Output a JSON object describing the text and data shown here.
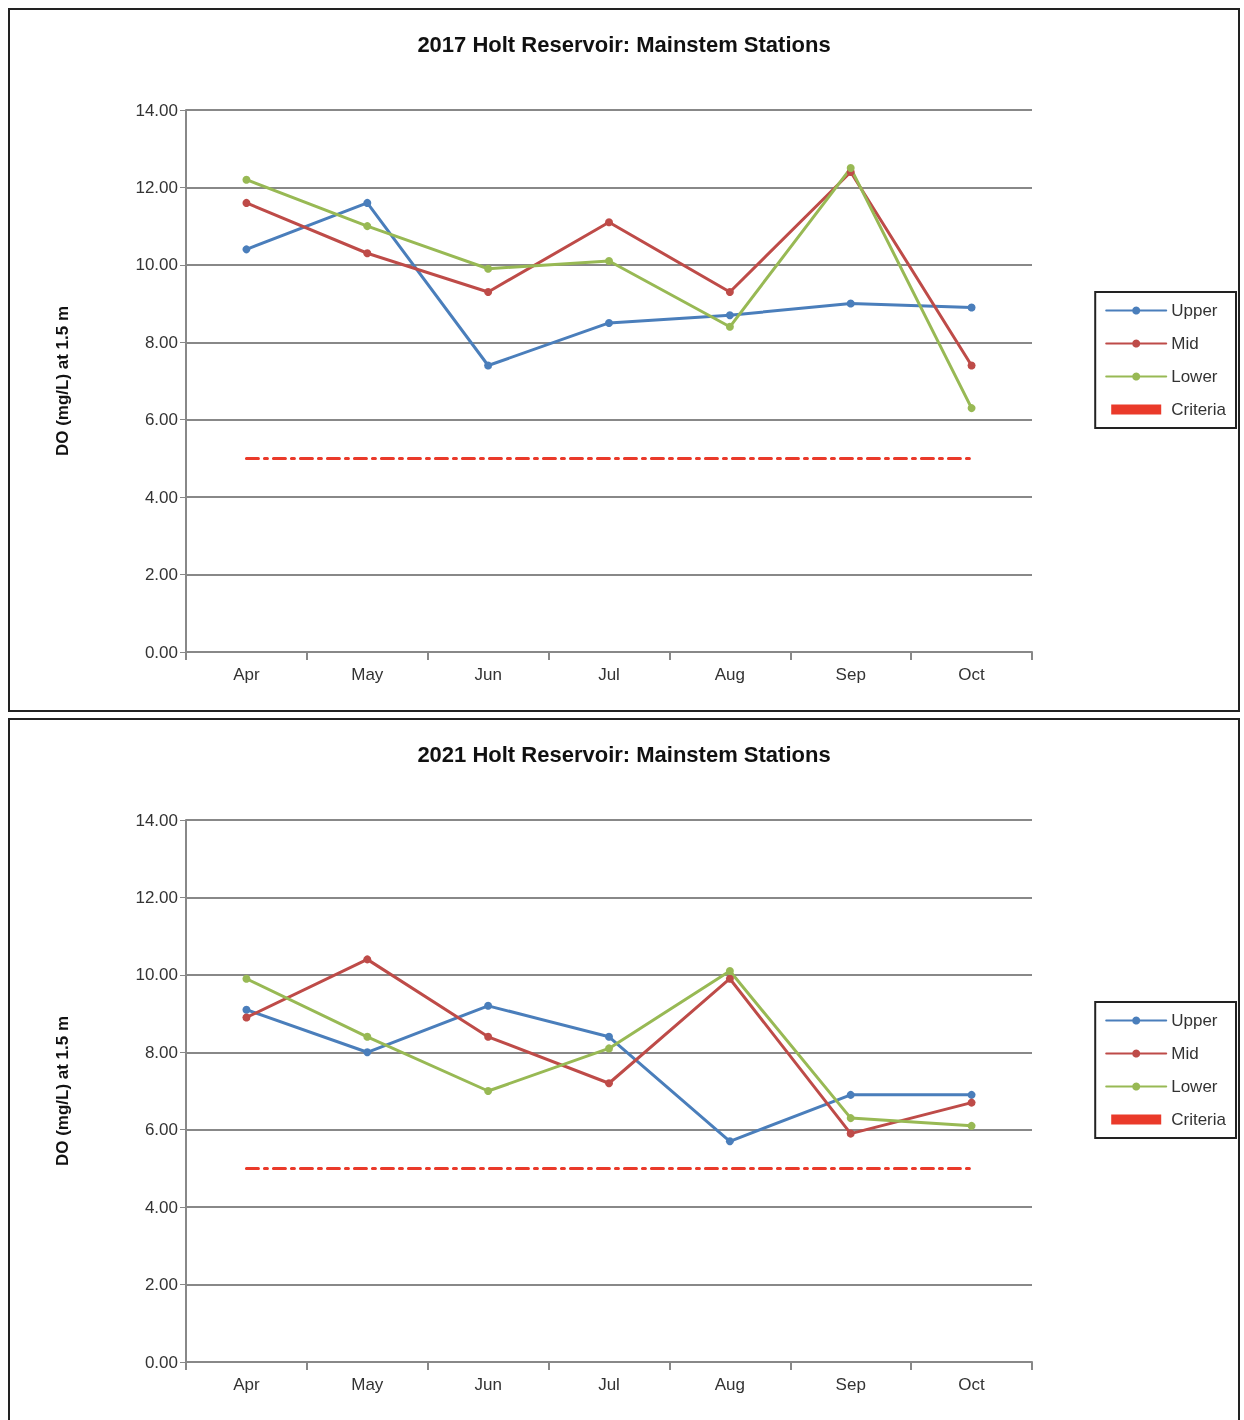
{
  "chart_data": [
    {
      "type": "line",
      "title": "2017 Holt Reservoir: Mainstem Stations",
      "ylabel": "DO (mg/L) at 1.5 m",
      "categories": [
        "Apr",
        "May",
        "Jun",
        "Jul",
        "Aug",
        "Sep",
        "Oct"
      ],
      "series": [
        {
          "name": "Upper",
          "color": "#4a7ebb",
          "values": [
            10.4,
            11.6,
            7.4,
            8.5,
            8.7,
            9.0,
            8.9
          ]
        },
        {
          "name": "Mid",
          "color": "#be4b48",
          "values": [
            11.6,
            10.3,
            9.3,
            11.1,
            9.3,
            12.4,
            7.4
          ]
        },
        {
          "name": "Lower",
          "color": "#98b954",
          "values": [
            12.2,
            11.0,
            9.9,
            10.1,
            8.4,
            12.5,
            6.3
          ]
        },
        {
          "name": "Criteria",
          "color": "#ea3a2a",
          "values": [
            5,
            5,
            5,
            5,
            5,
            5,
            5
          ],
          "marker": "none",
          "line_style": "dashed"
        }
      ],
      "ylim": [
        0,
        14
      ],
      "yticks": [
        {
          "value": 0,
          "label": "0.00"
        },
        {
          "value": 2,
          "label": "2.00"
        },
        {
          "value": 4,
          "label": "4.00"
        },
        {
          "value": 6,
          "label": "6.00"
        },
        {
          "value": 8,
          "label": "8.00"
        },
        {
          "value": 10,
          "label": "10.00"
        },
        {
          "value": 12,
          "label": "12.00"
        },
        {
          "value": 14,
          "label": "14.00"
        }
      ],
      "grid": "y",
      "legend": "right",
      "marker": "circle",
      "line_style": "solid"
    },
    {
      "type": "line",
      "title": "2021 Holt Reservoir: Mainstem Stations",
      "ylabel": "DO (mg/L) at 1.5 m",
      "categories": [
        "Apr",
        "May",
        "Jun",
        "Jul",
        "Aug",
        "Sep",
        "Oct"
      ],
      "series": [
        {
          "name": "Upper",
          "color": "#4a7ebb",
          "values": [
            9.1,
            8.0,
            9.2,
            8.4,
            5.7,
            6.9,
            6.9
          ]
        },
        {
          "name": "Mid",
          "color": "#be4b48",
          "values": [
            8.9,
            10.4,
            8.4,
            7.2,
            9.9,
            5.9,
            6.7
          ]
        },
        {
          "name": "Lower",
          "color": "#98b954",
          "values": [
            9.9,
            8.4,
            7.0,
            8.1,
            10.1,
            6.3,
            6.1
          ]
        },
        {
          "name": "Criteria",
          "color": "#ea3a2a",
          "values": [
            5,
            5,
            5,
            5,
            5,
            5,
            5
          ],
          "marker": "none",
          "line_style": "dashed"
        }
      ],
      "ylim": [
        0,
        14
      ],
      "yticks": [
        {
          "value": 0,
          "label": "0.00"
        },
        {
          "value": 2,
          "label": "2.00"
        },
        {
          "value": 4,
          "label": "4.00"
        },
        {
          "value": 6,
          "label": "6.00"
        },
        {
          "value": 8,
          "label": "8.00"
        },
        {
          "value": 10,
          "label": "10.00"
        },
        {
          "value": 12,
          "label": "12.00"
        },
        {
          "value": 14,
          "label": "14.00"
        }
      ],
      "grid": "y",
      "legend": "right",
      "marker": "circle",
      "line_style": "solid"
    }
  ]
}
